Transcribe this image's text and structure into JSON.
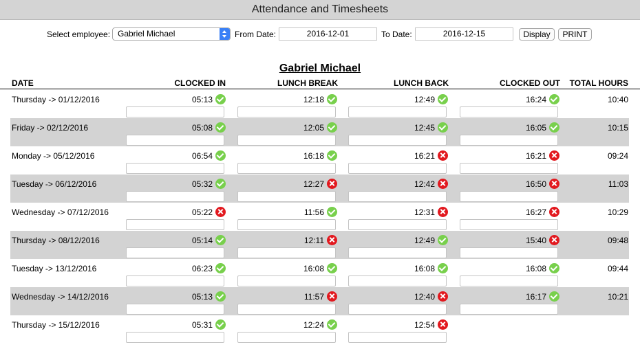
{
  "title": "Attendance and Timesheets",
  "controls": {
    "select_employee_label": "Select employee:",
    "employee": "Gabriel Michael",
    "from_label": "From Date:",
    "from_date": "2016-12-01",
    "to_label": "To Date:",
    "to_date": "2016-12-15",
    "display_label": "Display",
    "print_label": "PRINT"
  },
  "employee_heading": "Gabriel Michael",
  "columns": {
    "date": "DATE",
    "clocked_in": "CLOCKED IN",
    "lunch_break": "LUNCH BREAK",
    "lunch_back": "LUNCH BACK",
    "clocked_out": "CLOCKED OUT",
    "total_hours": "TOTAL HOURS"
  },
  "colors": {
    "ok": "#78d04c",
    "bad": "#e2191f",
    "shade": "#d3d3d3"
  },
  "rows": [
    {
      "date": "Thursday -> 01/12/2016",
      "clocked_in": {
        "time": "05:13",
        "status": "ok"
      },
      "lunch_break": {
        "time": "12:18",
        "status": "ok"
      },
      "lunch_back": {
        "time": "12:49",
        "status": "ok"
      },
      "clocked_out": {
        "time": "16:24",
        "status": "ok"
      },
      "total": "10:40"
    },
    {
      "date": "Friday -> 02/12/2016",
      "clocked_in": {
        "time": "05:08",
        "status": "ok"
      },
      "lunch_break": {
        "time": "12:05",
        "status": "ok"
      },
      "lunch_back": {
        "time": "12:45",
        "status": "ok"
      },
      "clocked_out": {
        "time": "16:05",
        "status": "ok"
      },
      "total": "10:15"
    },
    {
      "date": "Monday -> 05/12/2016",
      "clocked_in": {
        "time": "06:54",
        "status": "ok"
      },
      "lunch_break": {
        "time": "16:18",
        "status": "ok"
      },
      "lunch_back": {
        "time": "16:21",
        "status": "bad"
      },
      "clocked_out": {
        "time": "16:21",
        "status": "bad"
      },
      "total": "09:24"
    },
    {
      "date": "Tuesday -> 06/12/2016",
      "clocked_in": {
        "time": "05:32",
        "status": "ok"
      },
      "lunch_break": {
        "time": "12:27",
        "status": "bad"
      },
      "lunch_back": {
        "time": "12:42",
        "status": "bad"
      },
      "clocked_out": {
        "time": "16:50",
        "status": "bad"
      },
      "total": "11:03"
    },
    {
      "date": "Wednesday -> 07/12/2016",
      "clocked_in": {
        "time": "05:22",
        "status": "bad"
      },
      "lunch_break": {
        "time": "11:56",
        "status": "ok"
      },
      "lunch_back": {
        "time": "12:31",
        "status": "bad"
      },
      "clocked_out": {
        "time": "16:27",
        "status": "bad"
      },
      "total": "10:29"
    },
    {
      "date": "Thursday -> 08/12/2016",
      "clocked_in": {
        "time": "05:14",
        "status": "ok"
      },
      "lunch_break": {
        "time": "12:11",
        "status": "bad"
      },
      "lunch_back": {
        "time": "12:49",
        "status": "ok"
      },
      "clocked_out": {
        "time": "15:40",
        "status": "bad"
      },
      "total": "09:48"
    },
    {
      "date": "Tuesday -> 13/12/2016",
      "clocked_in": {
        "time": "06:23",
        "status": "ok"
      },
      "lunch_break": {
        "time": "16:08",
        "status": "ok"
      },
      "lunch_back": {
        "time": "16:08",
        "status": "ok"
      },
      "clocked_out": {
        "time": "16:08",
        "status": "ok"
      },
      "total": "09:44"
    },
    {
      "date": "Wednesday -> 14/12/2016",
      "clocked_in": {
        "time": "05:13",
        "status": "ok"
      },
      "lunch_break": {
        "time": "11:57",
        "status": "bad"
      },
      "lunch_back": {
        "time": "12:40",
        "status": "bad"
      },
      "clocked_out": {
        "time": "16:17",
        "status": "ok"
      },
      "total": "10:21"
    },
    {
      "date": "Thursday -> 15/12/2016",
      "clocked_in": {
        "time": "05:31",
        "status": "ok"
      },
      "lunch_break": {
        "time": "12:24",
        "status": "ok"
      },
      "lunch_back": {
        "time": "12:54",
        "status": "bad"
      },
      "clocked_out": null,
      "total": ""
    }
  ]
}
